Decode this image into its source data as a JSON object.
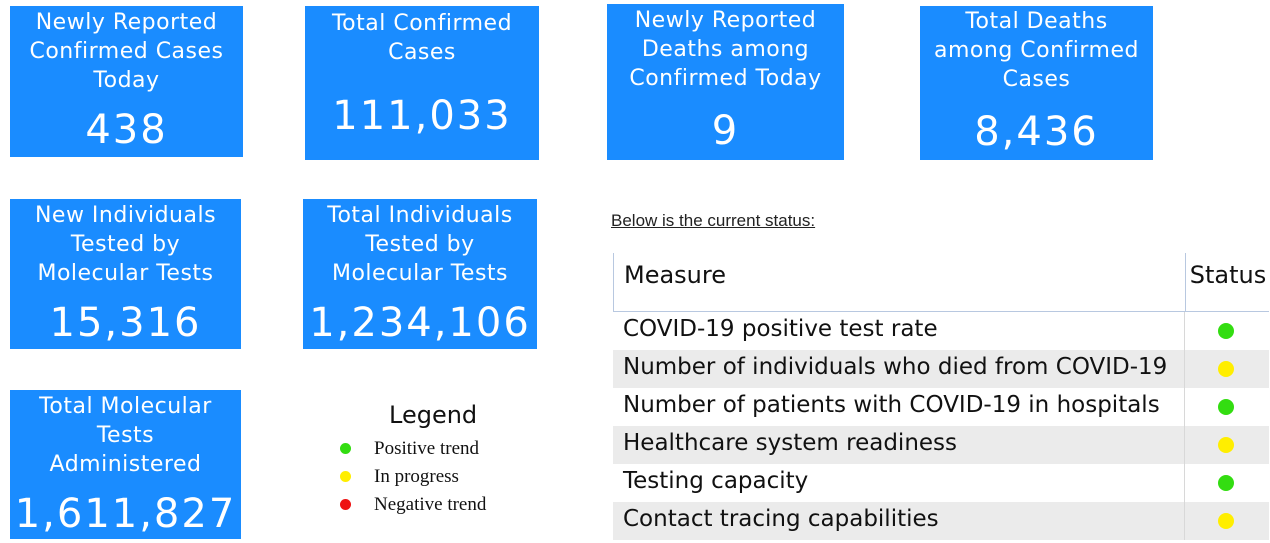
{
  "tiles": {
    "new_cases": {
      "label": "Newly Reported\nConfirmed Cases\nToday",
      "value": "438"
    },
    "total_cases": {
      "label": "Total Confirmed\nCases",
      "value": "111,033"
    },
    "new_deaths": {
      "label": "Newly Reported\nDeaths among\nConfirmed Today",
      "value": "9"
    },
    "total_deaths": {
      "label": "Total Deaths\namong Confirmed\nCases",
      "value": "8,436"
    },
    "new_tested": {
      "label": "New Individuals\nTested by\nMolecular Tests",
      "value": "15,316"
    },
    "total_tested": {
      "label": "Total Individuals\nTested by\nMolecular Tests",
      "value": "1,234,106"
    },
    "total_tests": {
      "label": "Total Molecular\nTests\nAdministered",
      "value": "1,611,827"
    }
  },
  "status_section": {
    "caption": "Below is the current status:",
    "header_measure": "Measure",
    "header_status": "Status",
    "rows": [
      {
        "measure": "COVID-19 positive test rate",
        "status": "positive"
      },
      {
        "measure": "Number of individuals who died from COVID-19",
        "status": "in-progress"
      },
      {
        "measure": "Number of patients with COVID-19 in hospitals",
        "status": "positive"
      },
      {
        "measure": "Healthcare system readiness",
        "status": "in-progress"
      },
      {
        "measure": "Testing capacity",
        "status": "positive"
      },
      {
        "measure": "Contact tracing capabilities",
        "status": "in-progress"
      }
    ]
  },
  "legend": {
    "title": "Legend",
    "items": [
      {
        "label": "Positive trend",
        "status": "positive"
      },
      {
        "label": "In progress",
        "status": "in-progress"
      },
      {
        "label": "Negative trend",
        "status": "negative"
      }
    ]
  },
  "colors": {
    "tile_bg": "#1a8cff",
    "positive": "#33dd11",
    "in-progress": "#ffee00",
    "negative": "#ee1111"
  }
}
